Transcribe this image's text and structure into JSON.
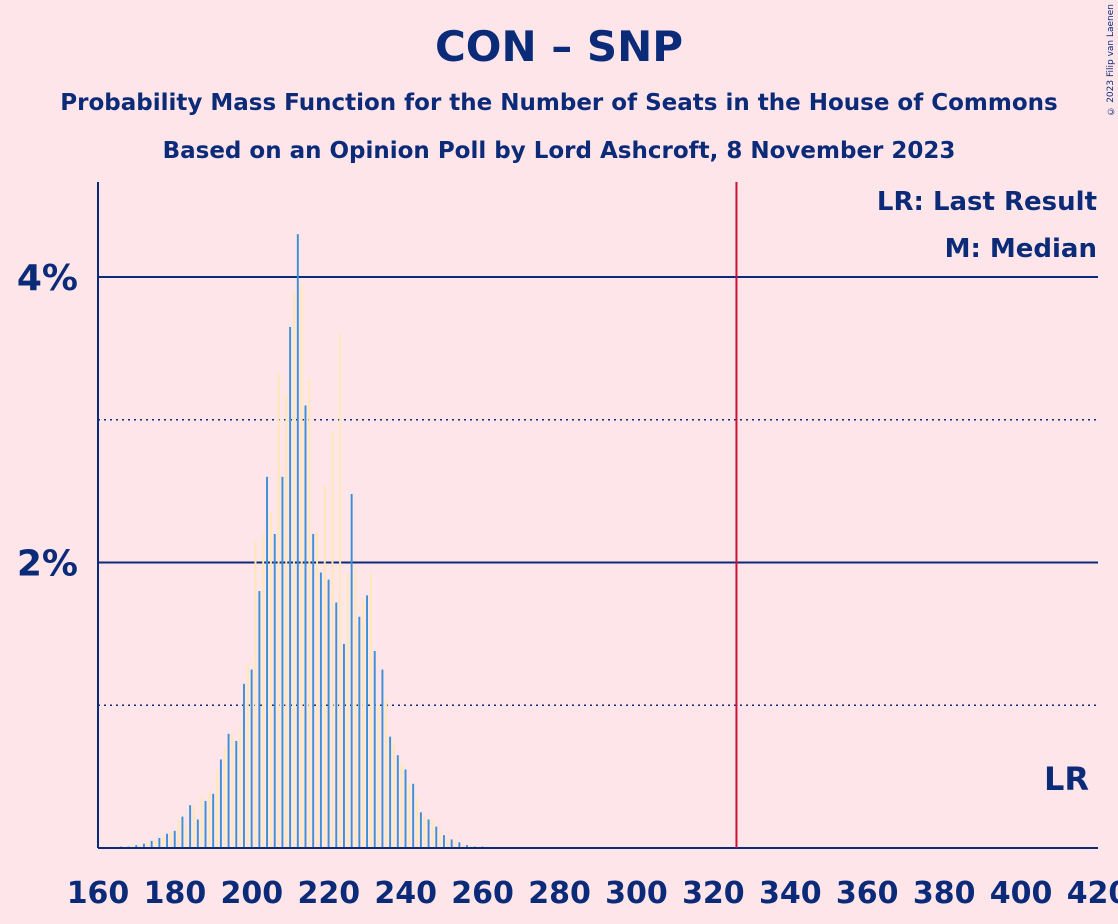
{
  "title": "CON – SNP",
  "subtitle1": "Probability Mass Function for the Number of Seats in the House of Commons",
  "subtitle2": "Based on an Opinion Poll by Lord Ashcroft, 8 November 2023",
  "copyright": "© 2023 Filip van Laenen",
  "legend": {
    "last_result": "LR: Last Result",
    "median": "M: Median",
    "lr_marker": "LR"
  },
  "colors": {
    "background": "#fde5ea",
    "text": "#0b2a78",
    "bar": "#3d8fd6",
    "bar_alt": "#ffe9b3",
    "majority_line": "#cc1133"
  },
  "chart_data": {
    "type": "bar",
    "xlim": [
      160,
      420
    ],
    "ylim": [
      0,
      4.6
    ],
    "x_ticks": [
      160,
      180,
      200,
      220,
      240,
      260,
      280,
      300,
      320,
      340,
      360,
      380,
      400,
      420
    ],
    "y_ticks": [
      {
        "value": 2,
        "label": "2%"
      },
      {
        "value": 4,
        "label": "4%"
      }
    ],
    "gridlines_solid": [
      2,
      4
    ],
    "gridlines_dotted": [
      1,
      3
    ],
    "majority_line": 326,
    "median": 212,
    "x": [
      165,
      166,
      167,
      168,
      169,
      170,
      171,
      172,
      173,
      174,
      175,
      176,
      177,
      178,
      179,
      180,
      181,
      182,
      183,
      184,
      185,
      186,
      187,
      188,
      189,
      190,
      191,
      192,
      193,
      194,
      195,
      196,
      197,
      198,
      199,
      200,
      201,
      202,
      203,
      204,
      205,
      206,
      207,
      208,
      209,
      210,
      211,
      212,
      213,
      214,
      215,
      216,
      217,
      218,
      219,
      220,
      221,
      222,
      223,
      224,
      225,
      226,
      227,
      228,
      229,
      230,
      231,
      232,
      233,
      234,
      235,
      236,
      237,
      238,
      239,
      240,
      241,
      242,
      243,
      244,
      245,
      246,
      247,
      248,
      249,
      250,
      251,
      252,
      253,
      254,
      255,
      256,
      257,
      258,
      259,
      260
    ],
    "values": [
      0.01,
      0.01,
      0.01,
      0.01,
      0.02,
      0.02,
      0.02,
      0.03,
      0.04,
      0.05,
      0.06,
      0.07,
      0.08,
      0.1,
      0.11,
      0.12,
      0.2,
      0.22,
      0.16,
      0.3,
      0.3,
      0.2,
      0.36,
      0.33,
      0.4,
      0.38,
      0.55,
      0.62,
      0.7,
      0.8,
      0.8,
      0.75,
      0.85,
      1.15,
      1.3,
      1.25,
      2.15,
      1.8,
      2.2,
      2.6,
      2.35,
      2.2,
      3.33,
      2.6,
      3.18,
      3.65,
      3.9,
      4.3,
      3.95,
      3.1,
      3.28,
      2.2,
      2.22,
      1.93,
      2.54,
      1.88,
      2.92,
      1.72,
      3.6,
      1.43,
      1.92,
      2.48,
      1.96,
      1.62,
      1.75,
      1.77,
      1.93,
      1.38,
      1.0,
      1.25,
      1.05,
      0.78,
      0.74,
      0.65,
      0.6,
      0.55,
      0.45,
      0.45,
      0.35,
      0.25,
      0.22,
      0.2,
      0.2,
      0.15,
      0.12,
      0.09,
      0.06,
      0.06,
      0.05,
      0.04,
      0.03,
      0.02,
      0.02,
      0.01,
      0.01,
      0.01
    ]
  }
}
